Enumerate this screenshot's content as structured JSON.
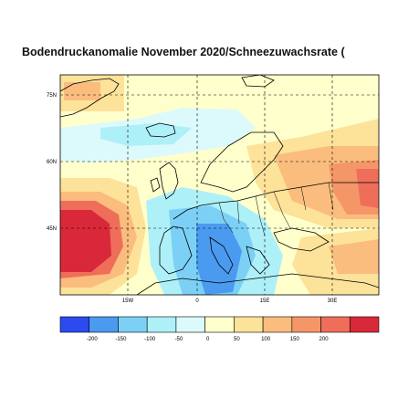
{
  "title": "Bodendruckanomalie November 2020/Schneezuwachsrate (",
  "map": {
    "lat_ticks": [
      {
        "value": 75,
        "label": "75N"
      },
      {
        "value": 60,
        "label": "60N"
      },
      {
        "value": 45,
        "label": "45N"
      }
    ],
    "lon_ticks": [
      {
        "value": -15,
        "label": "15W"
      },
      {
        "value": 0,
        "label": "0"
      },
      {
        "value": 15,
        "label": "15E"
      },
      {
        "value": 30,
        "label": "30E"
      }
    ],
    "lon_range": [
      -30,
      40
    ],
    "lat_range": [
      30,
      80
    ]
  },
  "colorbar": {
    "colors": [
      "#2b4bf0",
      "#4a9af0",
      "#7cd0f5",
      "#aef0f8",
      "#dcfafc",
      "#ffffcc",
      "#fde29a",
      "#fbbd7e",
      "#f59668",
      "#ef6e5a",
      "#d9283a"
    ],
    "labels": [
      "-200",
      "-150",
      "-100",
      "-50",
      "0",
      "50",
      "100",
      "150",
      "200"
    ]
  }
}
